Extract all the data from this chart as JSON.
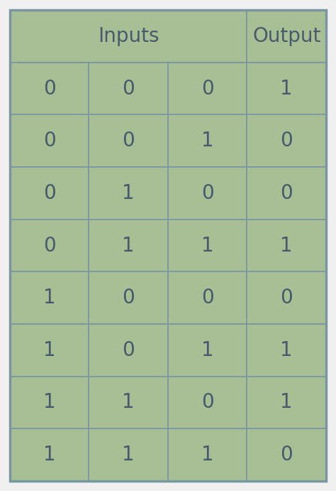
{
  "data_rows": [
    [
      0,
      0,
      0,
      1
    ],
    [
      0,
      0,
      1,
      0
    ],
    [
      0,
      1,
      0,
      0
    ],
    [
      0,
      1,
      1,
      1
    ],
    [
      1,
      0,
      0,
      0
    ],
    [
      1,
      0,
      1,
      1
    ],
    [
      1,
      1,
      0,
      1
    ],
    [
      1,
      1,
      1,
      0
    ]
  ],
  "cell_bg_color": "#a8bf96",
  "border_color": "#7a96a0",
  "text_color": "#4a5a6a",
  "header_text_color": "#4a5a6a",
  "font_size": 20,
  "header_font_size": 20,
  "fig_bg_color": "#f0f0f0",
  "outer_border_color": "#7a96a0",
  "outer_lw": 2.5,
  "inner_lw": 1.2
}
